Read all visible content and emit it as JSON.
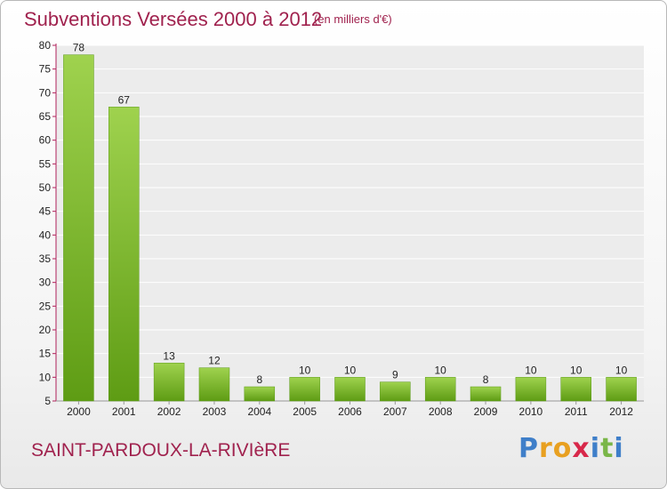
{
  "header": {
    "title": "Subventions Versées 2000 à 2012",
    "unit": "(en milliers d'€)"
  },
  "footer": {
    "commune": "SAINT-PARDOUX-LA-RIVIèRE",
    "logo": {
      "letters": [
        "P",
        "r",
        "o",
        "x",
        "i",
        "t",
        "i"
      ],
      "colors": [
        "#3f7fc9",
        "#e8a020",
        "#e8a020",
        "#d8284a",
        "#3f7fc9",
        "#7ab648",
        "#3f7fc9"
      ]
    }
  },
  "colors": {
    "bar_top": "#9fd24e",
    "bar_bottom": "#5e9c14",
    "axis": "#b0205a",
    "grid": "#ffffff"
  },
  "chart_data": {
    "type": "bar",
    "title": "Subventions Versées 2000 à 2012",
    "xlabel": "",
    "ylabel": "",
    "categories": [
      "2000",
      "2001",
      "2002",
      "2003",
      "2004",
      "2005",
      "2006",
      "2007",
      "2008",
      "2009",
      "2010",
      "2011",
      "2012"
    ],
    "values": [
      78,
      67,
      13,
      12,
      8,
      10,
      10,
      9,
      10,
      8,
      10,
      10,
      10
    ],
    "ylim": [
      5,
      80
    ],
    "yticks": [
      5,
      10,
      15,
      20,
      25,
      30,
      35,
      40,
      45,
      50,
      55,
      60,
      65,
      70,
      75,
      80
    ],
    "grid": true,
    "legend": "none"
  }
}
